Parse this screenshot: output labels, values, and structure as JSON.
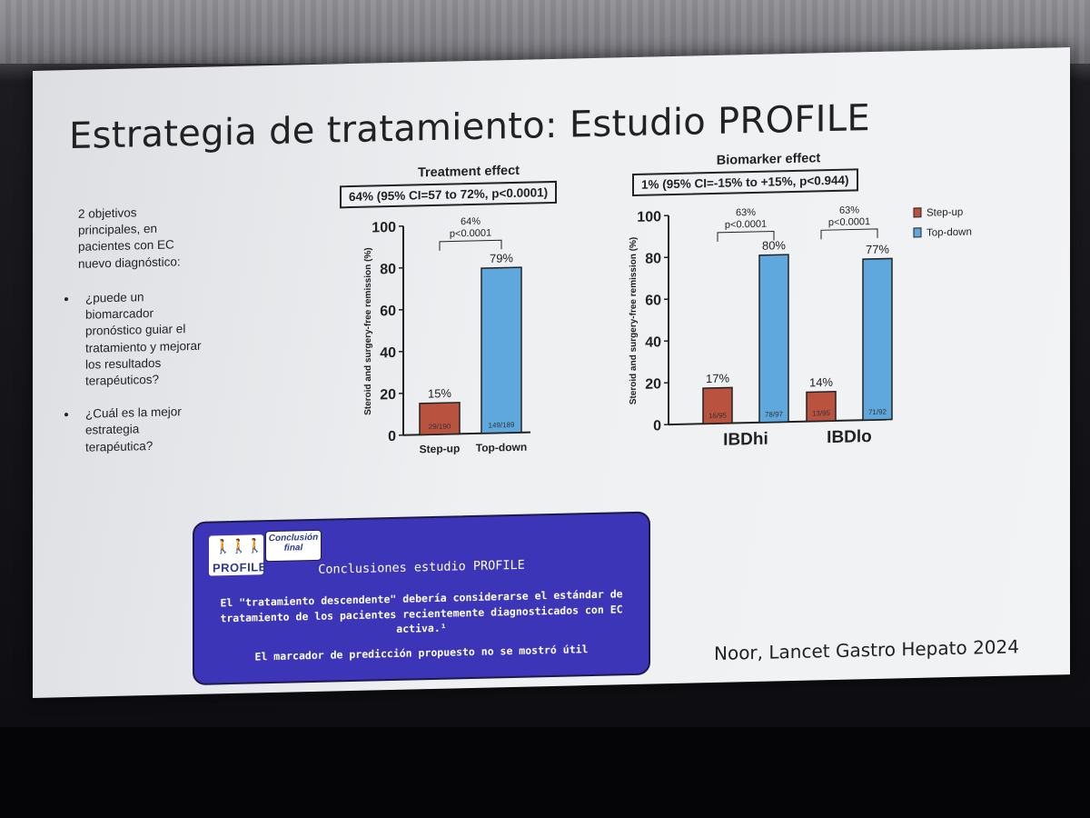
{
  "slide": {
    "title": "Estrategia de tratamiento: Estudio PROFILE",
    "intro": "2 objetivos principales, en pacientes con EC nuevo diagnóstico:",
    "bullets": [
      "¿puede un biomarcador pronóstico guiar el tratamiento y mejorar los resultados terapéuticos?",
      "¿Cuál es la mejor estrategia terapéutica?"
    ],
    "citation": "Noor, Lancet Gastro Hepato 2024"
  },
  "chart_data": [
    {
      "type": "bar",
      "title": "Treatment effect",
      "subtitle": "64% (95% CI=57 to 72%, p<0.0001)",
      "ylabel": "Steroid and surgery-free remission (%)",
      "ylim": [
        0,
        100
      ],
      "yticks": [
        "0",
        "20",
        "40",
        "60",
        "80",
        "100"
      ],
      "categories": [
        "Step-up",
        "Top-down"
      ],
      "values": [
        15,
        79
      ],
      "labels": [
        "15%",
        "79%"
      ],
      "counts": [
        "29/190",
        "149/189"
      ],
      "colors": [
        "#b9533f",
        "#5fa8de"
      ],
      "comparison": {
        "diff": "64%",
        "p": "p<0.0001"
      }
    },
    {
      "type": "bar",
      "title": "Biomarker effect",
      "subtitle": "1% (95% CI=-15% to +15%, p<0.944)",
      "ylabel": "Steroid and surgery-free remission (%)",
      "ylim": [
        0,
        100
      ],
      "yticks": [
        "0",
        "20",
        "40",
        "60",
        "80",
        "100"
      ],
      "categories": [
        "IBDhi",
        "IBDlo"
      ],
      "series": [
        {
          "name": "Step-up",
          "values": [
            17,
            14
          ],
          "labels": [
            "17%",
            "14%"
          ],
          "counts": [
            "16/95",
            "13/95"
          ],
          "color": "#b9533f"
        },
        {
          "name": "Top-down",
          "values": [
            80,
            77
          ],
          "labels": [
            "80%",
            "77%"
          ],
          "counts": [
            "78/97",
            "71/92"
          ],
          "color": "#5fa8de"
        }
      ],
      "comparisons": [
        {
          "diff": "63%",
          "p": "p<0.0001"
        },
        {
          "diff": "63%",
          "p": "p<0.0001"
        }
      ],
      "legend_position": "top-right"
    }
  ],
  "conclusion": {
    "logo_text": "PROFILE",
    "badge": "Conclusión final",
    "title": "Conclusiones estudio PROFILE",
    "paragraph1": "El \"tratamiento descendente\" debería considerarse el estándar de tratamiento de los pacientes recientemente diagnosticados con EC activa.¹",
    "paragraph2": "El marcador de predicción propuesto no se mostró útil"
  }
}
